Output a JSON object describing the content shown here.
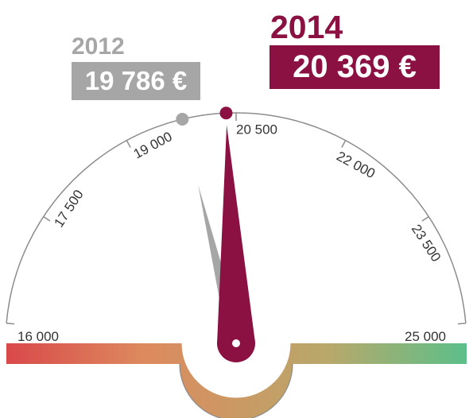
{
  "colors": {
    "current": "#8a1142",
    "previous": "#a6a6a6",
    "arc": "#8c8c8c",
    "scale_start": "#d9494a",
    "scale_mid": "#b8a86a",
    "scale_end": "#5cbf8a"
  },
  "chart_data": {
    "type": "gauge",
    "min": 16000,
    "max": 25000,
    "ticks": [
      16000,
      17500,
      19000,
      20500,
      22000,
      23500,
      25000
    ],
    "tick_labels": [
      "16 000",
      "17 500",
      "19 000",
      "20 500",
      "22 000",
      "23 500",
      "25 000"
    ],
    "series": [
      {
        "name": "2012",
        "value": 19786,
        "display": "19 786 €"
      },
      {
        "name": "2014",
        "value": 20369,
        "display": "20 369 €"
      }
    ]
  }
}
